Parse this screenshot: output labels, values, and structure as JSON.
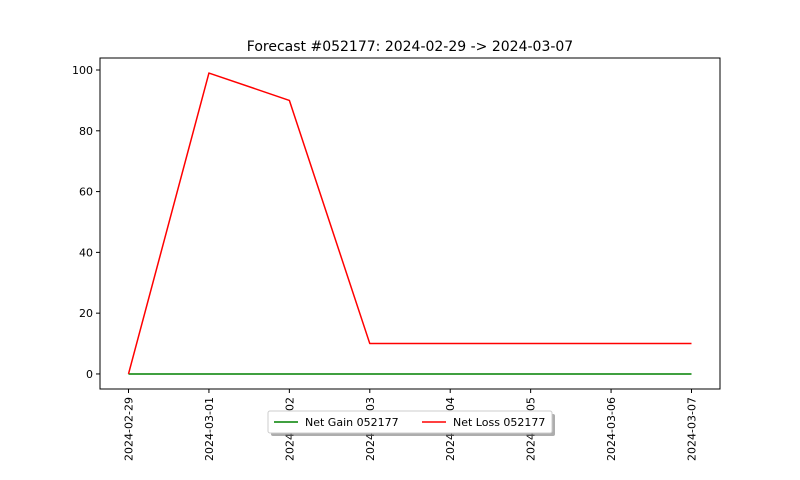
{
  "chart_data": {
    "type": "line",
    "title": "Forecast #052177: 2024-02-29 -> 2024-03-07",
    "xlabel": "",
    "ylabel": "",
    "categories": [
      "2024-02-29",
      "2024-03-01",
      "2024-03-02",
      "2024-03-03",
      "2024-03-04",
      "2024-03-05",
      "2024-03-06",
      "2024-03-07"
    ],
    "series": [
      {
        "name": "Net Gain 052177",
        "color": "#008000",
        "values": [
          0,
          0,
          0,
          0,
          0,
          0,
          0,
          0
        ]
      },
      {
        "name": "Net Loss 052177",
        "color": "#ff0000",
        "values": [
          0,
          99,
          90,
          10,
          10,
          10,
          10,
          10
        ]
      }
    ],
    "yticks": [
      0,
      20,
      40,
      60,
      80,
      100
    ],
    "ylim": [
      -4.95,
      103.95
    ],
    "grid": false,
    "legend_position": "lower-center"
  }
}
